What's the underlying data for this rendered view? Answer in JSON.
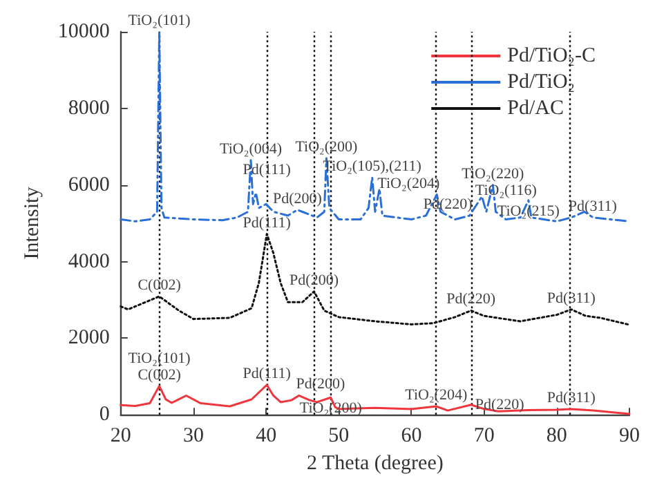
{
  "chart_data": {
    "type": "line",
    "xlabel": "2 Theta (degree)",
    "ylabel": "Intensity",
    "xlim": [
      20,
      90
    ],
    "xticks": [
      20,
      30,
      40,
      50,
      60,
      70,
      80,
      90
    ],
    "ylim": [
      0,
      10000
    ],
    "yticks": [
      0,
      2000,
      4000,
      6000,
      8000,
      10000
    ],
    "grid": false,
    "legend": "top right",
    "marker": "none",
    "series": [
      {
        "name": "Pd/TiO₂-C",
        "color": "#f0363d",
        "line_style": "solid",
        "x": [
          20,
          22,
          24,
          25.3,
          26.2,
          27,
          29,
          31,
          35,
          38,
          40.1,
          41,
          42,
          43.5,
          44.5,
          46,
          47,
          48.9,
          49.5,
          50,
          55,
          60,
          63.4,
          65,
          68.2,
          70,
          72,
          76,
          80,
          82,
          85,
          90
        ],
        "values": [
          250,
          230,
          300,
          750,
          400,
          310,
          500,
          300,
          220,
          400,
          780,
          500,
          330,
          380,
          500,
          380,
          330,
          450,
          200,
          150,
          180,
          150,
          220,
          110,
          260,
          150,
          90,
          120,
          130,
          150,
          110,
          20
        ]
      },
      {
        "name": "Pd/TiO₂",
        "color": "#2a6fd6",
        "line_style": "dashed",
        "x": [
          20,
          22,
          24,
          25,
          25.3,
          25.6,
          26,
          30,
          34,
          36,
          37.5,
          37.9,
          38.2,
          38.6,
          39,
          40,
          41,
          43,
          44.3,
          45,
          47,
          48,
          48.3,
          48.7,
          50,
          53,
          54.1,
          54.6,
          55,
          55.6,
          56,
          60,
          62,
          63.5,
          64,
          66,
          68,
          69.7,
          70.3,
          71.2,
          71.6,
          73,
          75,
          76.1,
          76.5,
          80,
          82,
          83.8,
          85,
          90
        ],
        "values": [
          5100,
          5050,
          5100,
          5300,
          10000,
          5400,
          5150,
          5100,
          5080,
          5150,
          5300,
          6650,
          5500,
          5800,
          5400,
          5500,
          5300,
          5200,
          5350,
          5300,
          5150,
          5300,
          6700,
          5400,
          5100,
          5100,
          5400,
          6200,
          5300,
          5900,
          5200,
          5100,
          5200,
          5750,
          5300,
          5100,
          5200,
          5700,
          5300,
          6000,
          5300,
          5100,
          5150,
          5600,
          5150,
          5050,
          5150,
          5300,
          5150,
          5050
        ]
      },
      {
        "name": "Pd/AC",
        "color": "#111111",
        "line_style": "dotted",
        "x": [
          20,
          21,
          25.3,
          28,
          30,
          35,
          38,
          39,
          40.1,
          41,
          42,
          43,
          45,
          46.6,
          48,
          50,
          55,
          60,
          63,
          66,
          68.2,
          70,
          75,
          80,
          82,
          84,
          86,
          90
        ],
        "values": [
          2830,
          2750,
          3090,
          2720,
          2500,
          2530,
          2780,
          3440,
          4720,
          4220,
          3440,
          2940,
          2940,
          3220,
          2720,
          2550,
          2440,
          2360,
          2390,
          2550,
          2720,
          2580,
          2440,
          2610,
          2750,
          2580,
          2530,
          2350
        ]
      }
    ],
    "ref_lines": [
      {
        "axis": "x",
        "value": 25.3,
        "color": "#111111",
        "line_style": "dotted"
      },
      {
        "axis": "x",
        "value": 40.1,
        "color": "#111111",
        "line_style": "dotted"
      },
      {
        "axis": "x",
        "value": 46.6,
        "color": "#111111",
        "line_style": "dotted"
      },
      {
        "axis": "x",
        "value": 48.9,
        "color": "#111111",
        "line_style": "dotted"
      },
      {
        "axis": "x",
        "value": 63.4,
        "color": "#111111",
        "line_style": "dotted"
      },
      {
        "axis": "x",
        "value": 68.2,
        "color": "#111111",
        "line_style": "dotted"
      },
      {
        "axis": "x",
        "value": 81.8,
        "color": "#111111",
        "line_style": "dotted"
      }
    ],
    "annotations": [
      {
        "text": "TiO₂(101)",
        "x": 25.3,
        "y": 10000
      },
      {
        "text": "TiO₂(004)",
        "x": 37.9,
        "y": 6650
      },
      {
        "text": "Pd(111)",
        "x": 40.1,
        "y": 6100
      },
      {
        "text": "Pd(200)",
        "x": 44.3,
        "y": 5350
      },
      {
        "text": "TiO₂(200)",
        "x": 48.3,
        "y": 6700
      },
      {
        "text": "TiO₂(105),(211)",
        "x": 54.6,
        "y": 6200
      },
      {
        "text": "TiO₂(220)",
        "x": 71.2,
        "y": 6000
      },
      {
        "text": "TiO₂(204)",
        "x": 63.5,
        "y": 5750
      },
      {
        "text": "TiO₂(116)",
        "x": 68.2,
        "y": 5850
      },
      {
        "text": "Pd(220)",
        "x": 68,
        "y": 5200
      },
      {
        "text": "TiO₂(215)",
        "x": 76.1,
        "y": 5600
      },
      {
        "text": "Pd(311)",
        "x": 82,
        "y": 5150
      },
      {
        "text": "Pd(111)",
        "x": 40.1,
        "y": 4720
      },
      {
        "text": "C(002)",
        "x": 25.3,
        "y": 3090
      },
      {
        "text": "Pd(200)",
        "x": 46.6,
        "y": 3220
      },
      {
        "text": "Pd(220)",
        "x": 68.2,
        "y": 2720
      },
      {
        "text": "Pd(311)",
        "x": 82,
        "y": 2750
      },
      {
        "text": "TiO₂(101)\nC(002)",
        "x": 25.3,
        "y": 750
      },
      {
        "text": "Pd(111)",
        "x": 40.1,
        "y": 780
      },
      {
        "text": "Pd(200)",
        "x": 44.5,
        "y": 500
      },
      {
        "text": "TiO₂(200)",
        "x": 48.9,
        "y": 450
      },
      {
        "text": "TiO₂(204)",
        "x": 63.4,
        "y": 220
      },
      {
        "text": "Pd(220)",
        "x": 68.2,
        "y": 260
      },
      {
        "text": "Pd(311)",
        "x": 82,
        "y": 150
      }
    ]
  }
}
